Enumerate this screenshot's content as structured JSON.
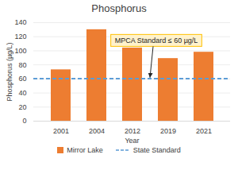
{
  "chart_data": {
    "type": "bar",
    "title": "Phosphorus",
    "x_label": "Year",
    "y_label": "Phosphorus (µg/L)",
    "categories": [
      "2001",
      "2004",
      "2012",
      "2019",
      "2021"
    ],
    "series": [
      {
        "name": "Mirror Lake",
        "type": "bar",
        "color": "#ed7d31",
        "values": [
          73,
          130,
          104,
          89,
          98
        ]
      },
      {
        "name": "State Standard",
        "type": "line",
        "line_style": "dashed",
        "color": "#5b9bd5",
        "values": [
          60,
          60,
          60,
          60,
          60
        ]
      }
    ],
    "annotations": [
      {
        "text": "MPCA Standard ≤ 60 µg/L",
        "x": "2012",
        "y": 60
      }
    ],
    "ylim": [
      0,
      140
    ],
    "yticks": [
      0,
      20,
      40,
      60,
      80,
      100,
      120,
      140
    ],
    "grid": true,
    "legend": "bottom"
  }
}
